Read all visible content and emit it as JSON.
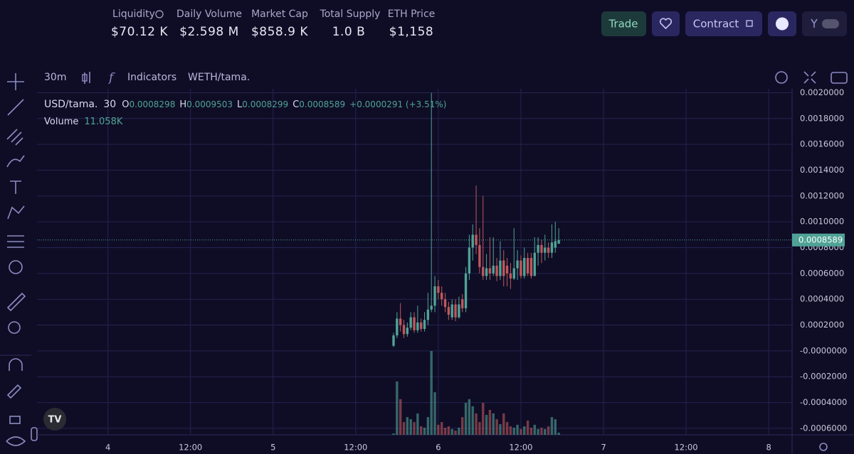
{
  "header": {
    "stats": [
      {
        "label": "Liquidity",
        "value": "$70.12 K"
      },
      {
        "label": "Daily Volume",
        "value": "$2.598 M"
      },
      {
        "label": "Market Cap",
        "value": "$858.9 K"
      },
      {
        "label": "Total Supply",
        "value": "1.0 B"
      },
      {
        "label": "ETH Price",
        "value": "$1,158"
      }
    ],
    "buttons": {
      "trade": "Trade",
      "contract": "Contract"
    }
  },
  "toolbar": {
    "interval": "30m",
    "indicators": "Indicators",
    "symbol": "WETH/tama."
  },
  "chart_data": {
    "type": "candlestick",
    "legend": {
      "symbol": "USD/tama.",
      "interval": 30,
      "o_label": "O",
      "open": 0.0008298,
      "h_label": "H",
      "high": 0.0009503,
      "l_label": "L",
      "low": 0.0008299,
      "c_label": "C",
      "close": 0.0008589,
      "change": "+0.0000291 (+3.51%)"
    },
    "volume_title": "Volume",
    "volume_label": "11.058K",
    "x": [
      41.5,
      42,
      42.5,
      43,
      43.5,
      44,
      44.5,
      45,
      45.5,
      46,
      46.5,
      47,
      47.5,
      48,
      48.5,
      49,
      49.5,
      50,
      50.5,
      51,
      51.5,
      52,
      52.5,
      53,
      53.5,
      54,
      54.5,
      55,
      55.5,
      56,
      56.5,
      57,
      57.5,
      58,
      58.5,
      59,
      59.5,
      60,
      60.5,
      61,
      61.5,
      62,
      62.5,
      63,
      63.5,
      64,
      64.5,
      65,
      65.5
    ],
    "open": [
      4e-05,
      0.00012,
      0.00025,
      0.0002,
      0.00013,
      0.00018,
      0.00026,
      0.00016,
      0.00022,
      0.00017,
      0.00024,
      0.00032,
      0.00035,
      0.0005,
      0.00045,
      0.0004,
      0.00034,
      0.00026,
      0.00036,
      0.00026,
      0.0004,
      0.00033,
      0.0006,
      0.0008,
      0.0009,
      0.00082,
      0.00065,
      0.00058,
      0.00064,
      0.0006,
      0.00066,
      0.00058,
      0.0007,
      0.00066,
      0.0006,
      0.00056,
      0.00064,
      0.0007,
      0.00058,
      0.00072,
      0.00072,
      0.00058,
      0.00076,
      0.00082,
      0.00076,
      0.0008,
      0.00076,
      0.0008,
      0.0008298
    ],
    "high": [
      0.00014,
      0.0003,
      0.00037,
      0.00024,
      0.00022,
      0.0003,
      0.0003,
      0.00035,
      0.00025,
      0.0003,
      0.00045,
      0.002,
      0.00058,
      0.00055,
      0.0005,
      0.00045,
      0.00038,
      0.0004,
      0.0004,
      0.00042,
      0.00044,
      0.00065,
      0.0009,
      0.00098,
      0.00128,
      0.00095,
      0.0012,
      0.00075,
      0.00088,
      0.00088,
      0.00072,
      0.00085,
      0.00078,
      0.00072,
      0.00068,
      0.00095,
      0.00078,
      0.00074,
      0.0008,
      0.00076,
      0.00076,
      0.00088,
      0.00088,
      0.00086,
      0.0009,
      0.00084,
      0.00098,
      0.001,
      0.0009503
    ],
    "low": [
      3e-05,
      0.0001,
      0.00015,
      0.0001,
      0.00011,
      0.00016,
      0.00014,
      0.00014,
      0.00015,
      0.00015,
      0.0002,
      0.0003,
      0.0003,
      0.0004,
      0.00035,
      0.0003,
      0.00024,
      0.00024,
      0.00023,
      0.00025,
      0.0003,
      0.0003,
      0.00055,
      0.0007,
      0.00075,
      0.0006,
      0.00055,
      0.00055,
      0.00055,
      0.00058,
      0.00054,
      0.00055,
      0.0005,
      0.0005,
      0.00048,
      0.00055,
      0.00055,
      0.00056,
      0.00056,
      0.00058,
      0.00056,
      0.00058,
      0.00066,
      0.00068,
      0.0007,
      0.00072,
      0.00072,
      0.00076,
      0.0008299
    ],
    "close": [
      0.00012,
      0.00025,
      0.0002,
      0.00013,
      0.00018,
      0.00026,
      0.00016,
      0.00022,
      0.00017,
      0.00024,
      0.00032,
      0.00035,
      0.0005,
      0.00045,
      0.0004,
      0.00034,
      0.00028,
      0.00036,
      0.00026,
      0.00036,
      0.00033,
      0.0006,
      0.0008,
      0.0009,
      0.00082,
      0.00065,
      0.00058,
      0.00064,
      0.0006,
      0.00066,
      0.00058,
      0.0007,
      0.00058,
      0.0006,
      0.00056,
      0.00064,
      0.0007,
      0.00058,
      0.00072,
      0.0006,
      0.00058,
      0.00076,
      0.00082,
      0.00076,
      0.0008,
      0.00076,
      0.00084,
      0.00085,
      0.0008589
    ],
    "volume": [
      7000,
      277000,
      185000,
      66000,
      92000,
      81000,
      66000,
      111000,
      44000,
      37000,
      92000,
      435000,
      221000,
      52000,
      66000,
      37000,
      44000,
      30000,
      22000,
      37000,
      92000,
      166000,
      185000,
      148000,
      111000,
      66000,
      166000,
      103000,
      129000,
      111000,
      81000,
      55000,
      111000,
      66000,
      44000,
      37000,
      52000,
      30000,
      44000,
      74000,
      37000,
      52000,
      30000,
      37000,
      30000,
      44000,
      92000,
      81000,
      11058
    ],
    "colors": {
      "up": "#4fa396",
      "down": "#c0585c"
    },
    "grid": true,
    "xlim": [
      -10.3,
      99.4
    ],
    "xticks": [
      {
        "value": 0,
        "label": "4"
      },
      {
        "value": 12,
        "label": "12:00"
      },
      {
        "value": 24,
        "label": "5"
      },
      {
        "value": 36,
        "label": "12:00"
      },
      {
        "value": 48,
        "label": "6"
      },
      {
        "value": 60,
        "label": "12:00"
      },
      {
        "value": 72,
        "label": "7"
      },
      {
        "value": 84,
        "label": "12:00"
      },
      {
        "value": 96,
        "label": "8"
      }
    ],
    "ylim": [
      -0.00065,
      0.00203
    ],
    "yticks": [
      {
        "value": -0.0006,
        "label": "-0.0006000"
      },
      {
        "value": -0.0004,
        "label": "-0.0004000"
      },
      {
        "value": -0.0002,
        "label": "-0.0002000"
      },
      {
        "value": 0,
        "label": "-0.0000000"
      },
      {
        "value": 0.0002,
        "label": "0.0002000"
      },
      {
        "value": 0.0004,
        "label": "0.0004000"
      },
      {
        "value": 0.0006,
        "label": "0.0006000"
      },
      {
        "value": 0.0008,
        "label": "0.0008000"
      },
      {
        "value": 0.001,
        "label": "0.0010000"
      },
      {
        "value": 0.0012,
        "label": "0.0012000"
      },
      {
        "value": 0.0014,
        "label": "0.0014000"
      },
      {
        "value": 0.0016,
        "label": "0.0016000"
      },
      {
        "value": 0.0018,
        "label": "0.0018000"
      },
      {
        "value": 0.002,
        "label": "0.0020000"
      }
    ],
    "last_price": {
      "value": 0.0008589,
      "label": "0.0008589"
    }
  }
}
